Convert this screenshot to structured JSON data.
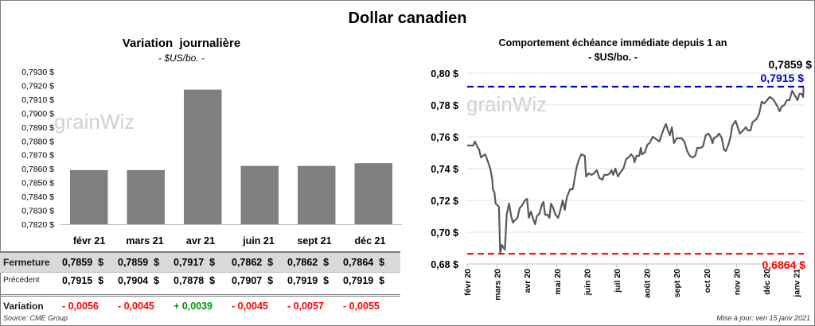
{
  "title": "Dollar canadien",
  "left": {
    "title": "Variation  journalière",
    "subtitle": "- $US/bo. -",
    "table": {
      "months": [
        "févr 21",
        "mars 21",
        "avr 21",
        "juin 21",
        "sept 21",
        "déc 21"
      ],
      "rows": [
        {
          "label": "Fermeture",
          "values": [
            "0,7859  $",
            "0,7859  $",
            "0,7917  $",
            "0,7862  $",
            "0,7862  $",
            "0,7864  $"
          ]
        },
        {
          "label": "Précédent",
          "values": [
            "0,7915  $",
            "0,7904  $",
            "0,7878  $",
            "0,7907  $",
            "0,7919  $",
            "0,7919  $"
          ]
        },
        {
          "label": "Variation",
          "values": [
            "- 0,0056",
            "- 0,0045",
            "+ 0,0039",
            "- 0,0045",
            "- 0,0057",
            "- 0,0055"
          ],
          "colors": [
            "#ff0000",
            "#ff0000",
            "#009900",
            "#ff0000",
            "#ff0000",
            "#ff0000"
          ]
        }
      ]
    },
    "source": "Source: CME Group",
    "watermark": "grainWiz"
  },
  "right": {
    "title": "Comportement échéance immédiate depuis 1 an",
    "subtitle": "- $US/bo. -",
    "last_label": "0,7859 $",
    "high_label": "0,7915 $",
    "low_label": "0,6864 $",
    "updated": "Mise à jour: ven 15 janv 2021",
    "watermark": "grainWiz"
  },
  "chart_data": [
    {
      "type": "bar",
      "title": "Variation journalière",
      "ylabel": "$US/bo.",
      "categories": [
        "févr 21",
        "mars 21",
        "avr 21",
        "juin 21",
        "sept 21",
        "déc 21"
      ],
      "values": [
        0.7859,
        0.7859,
        0.7917,
        0.7862,
        0.7862,
        0.7864
      ],
      "ylim": [
        0.782,
        0.793
      ],
      "yticks": [
        "0,7820 $",
        "0,7830 $",
        "0,7840 $",
        "0,7850 $",
        "0,7860 $",
        "0,7870 $",
        "0,7880 $",
        "0,7890 $",
        "0,7900 $",
        "0,7910 $",
        "0,7920 $",
        "0,7930 $"
      ],
      "color": "#7f7f7f"
    },
    {
      "type": "line",
      "title": "Comportement échéance immédiate depuis 1 an",
      "ylabel": "$US/bo.",
      "ylim": [
        0.68,
        0.8
      ],
      "yticks": [
        "0,68 $",
        "0,70 $",
        "0,72 $",
        "0,74 $",
        "0,76 $",
        "0,78 $",
        "0,80 $"
      ],
      "xticks": [
        "févr 20",
        "mars 20",
        "avr 20",
        "mai 20",
        "juin 20",
        "juil 20",
        "août 20",
        "sept 20",
        "oct 20",
        "nov 20",
        "déc 20",
        "janv 21"
      ],
      "x_unit": "months since févr 20",
      "x": [
        0,
        0.2,
        0.26,
        0.33,
        0.4,
        0.46,
        0.6,
        0.68,
        0.77,
        0.84,
        0.86,
        0.91,
        0.95,
        1.06,
        1.1,
        1.16,
        1.22,
        1.26,
        1.32,
        1.4,
        1.47,
        1.53,
        1.57,
        1.68,
        1.75,
        1.84,
        1.93,
        2.0,
        2.06,
        2.13,
        2.21,
        2.27,
        2.33,
        2.42,
        2.51,
        2.55,
        2.6,
        2.68,
        2.75,
        2.8,
        2.86,
        2.95,
        3.04,
        3.13,
        3.19,
        3.26,
        3.33,
        3.44,
        3.53,
        3.62,
        3.66,
        3.72,
        3.81,
        3.93,
        3.97,
        4.06,
        4.15,
        4.24,
        4.33,
        4.42,
        4.52,
        4.58,
        4.68,
        4.77,
        4.82,
        4.88,
        4.95,
        5.04,
        5.13,
        5.22,
        5.31,
        5.4,
        5.48,
        5.56,
        5.59,
        5.66,
        5.75,
        5.8,
        5.84,
        5.93,
        6.02,
        6.09,
        6.2,
        6.28,
        6.42,
        6.51,
        6.57,
        6.64,
        6.71,
        6.77,
        6.84,
        6.91,
        7.0,
        7.17,
        7.26,
        7.35,
        7.44,
        7.53,
        7.62,
        7.69,
        7.8,
        7.88,
        7.97,
        8.06,
        8.13,
        8.2,
        8.24,
        8.33,
        8.42,
        8.51,
        8.58,
        8.64,
        8.73,
        8.8,
        8.86,
        8.97,
        9.04,
        9.11,
        9.22,
        9.31,
        9.38,
        9.47,
        9.53,
        9.66,
        9.75,
        9.84,
        9.93,
        10.02,
        10.11,
        10.2,
        10.28,
        10.37,
        10.44,
        10.51,
        10.6,
        10.68,
        10.77,
        10.86,
        10.95,
        11.04,
        11.1,
        11.17,
        11.23,
        11.24
      ],
      "y": [
        0.7545,
        0.7545,
        0.757,
        0.754,
        0.752,
        0.747,
        0.749,
        0.745,
        0.74,
        0.733,
        0.727,
        0.725,
        0.718,
        0.716,
        0.687,
        0.692,
        0.69,
        0.689,
        0.711,
        0.718,
        0.71,
        0.706,
        0.707,
        0.709,
        0.715,
        0.717,
        0.72,
        0.721,
        0.709,
        0.713,
        0.708,
        0.705,
        0.71,
        0.712,
        0.718,
        0.719,
        0.711,
        0.711,
        0.709,
        0.718,
        0.716,
        0.711,
        0.709,
        0.715,
        0.72,
        0.714,
        0.722,
        0.727,
        0.727,
        0.737,
        0.741,
        0.745,
        0.749,
        0.748,
        0.735,
        0.737,
        0.736,
        0.737,
        0.739,
        0.734,
        0.733,
        0.736,
        0.736,
        0.737,
        0.739,
        0.736,
        0.74,
        0.735,
        0.738,
        0.74,
        0.746,
        0.747,
        0.749,
        0.747,
        0.744,
        0.748,
        0.748,
        0.753,
        0.749,
        0.75,
        0.755,
        0.756,
        0.76,
        0.759,
        0.757,
        0.762,
        0.765,
        0.768,
        0.764,
        0.761,
        0.766,
        0.756,
        0.759,
        0.759,
        0.757,
        0.751,
        0.748,
        0.747,
        0.748,
        0.753,
        0.753,
        0.754,
        0.761,
        0.762,
        0.76,
        0.756,
        0.759,
        0.76,
        0.762,
        0.759,
        0.752,
        0.751,
        0.755,
        0.76,
        0.767,
        0.77,
        0.766,
        0.762,
        0.764,
        0.766,
        0.764,
        0.764,
        0.769,
        0.771,
        0.774,
        0.782,
        0.781,
        0.783,
        0.785,
        0.784,
        0.782,
        0.779,
        0.776,
        0.779,
        0.78,
        0.783,
        0.783,
        0.789,
        0.786,
        0.783,
        0.787,
        0.787,
        0.785,
        0.791
      ],
      "hlines": [
        {
          "value": 0.7915,
          "color": "#0000cc",
          "label": "0,7915 $"
        },
        {
          "value": 0.6864,
          "color": "#ff0000",
          "label": "0,6864 $"
        }
      ],
      "line_color": "#595959",
      "grid": true
    }
  ]
}
